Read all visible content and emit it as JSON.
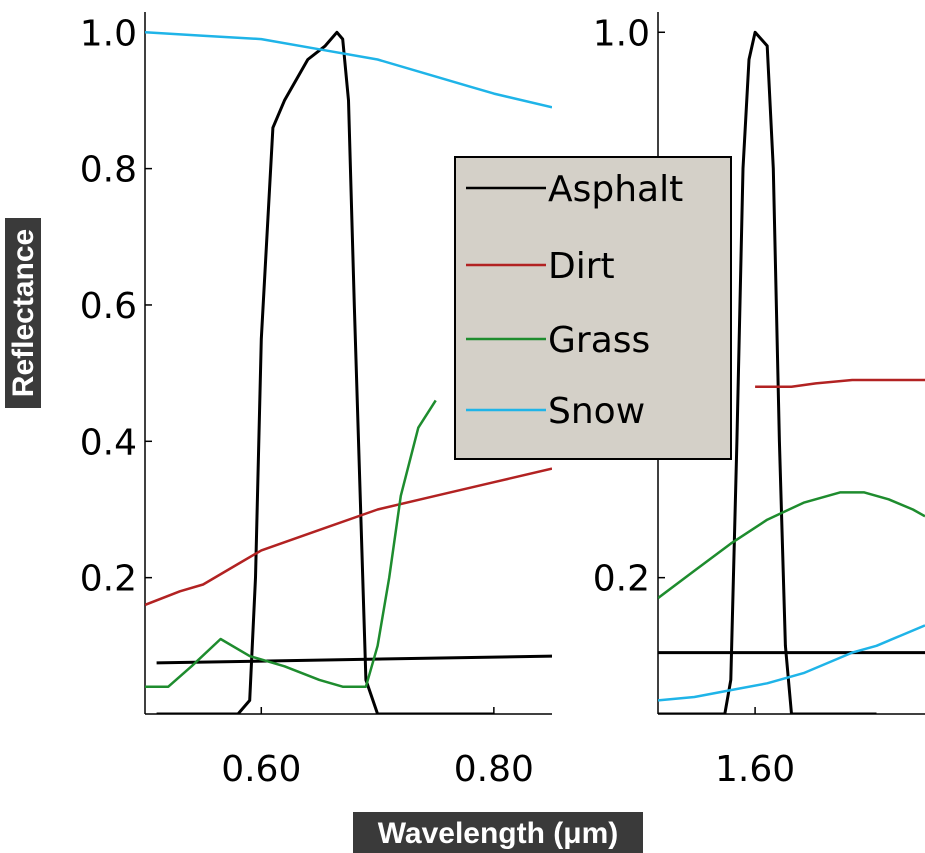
{
  "chart_data": {
    "type": "line",
    "xlabel": "Wavelength (μm)",
    "ylabel": "Reflectance",
    "legend": {
      "placement": "center-right",
      "entries": [
        {
          "name": "Asphalt",
          "color": "#000000"
        },
        {
          "name": "Dirt",
          "color": "#b22222"
        },
        {
          "name": "Grass",
          "color": "#1e8c2e"
        },
        {
          "name": "Snow",
          "color": "#1fb4e8"
        }
      ]
    },
    "panels": [
      {
        "xlim": [
          0.5,
          0.85
        ],
        "ylim": [
          0.0,
          1.04
        ],
        "xticks": [
          0.6,
          0.8
        ],
        "xtick_labels": [
          "0.60",
          "0.80"
        ],
        "yticks": [
          0.2,
          0.4,
          0.6,
          0.8,
          1.0
        ],
        "ytick_labels": [
          "0.2",
          "0.4",
          "0.6",
          "0.8",
          "1.0"
        ],
        "series": [
          {
            "name": "Asphalt",
            "x": [
              0.51,
              0.85
            ],
            "y": [
              0.075,
              0.085
            ]
          },
          {
            "name": "Asphalt",
            "x": [
              0.51,
              0.55,
              0.58,
              0.59,
              0.595,
              0.6,
              0.61,
              0.62,
              0.64,
              0.655,
              0.665,
              0.67,
              0.675,
              0.68,
              0.69,
              0.7,
              0.75,
              0.8
            ],
            "y": [
              0.0,
              0.0,
              0.0,
              0.02,
              0.2,
              0.55,
              0.86,
              0.9,
              0.96,
              0.98,
              1.0,
              0.99,
              0.9,
              0.6,
              0.05,
              0.0,
              0.0,
              0.0
            ]
          },
          {
            "name": "Dirt",
            "x": [
              0.5,
              0.53,
              0.55,
              0.58,
              0.6,
              0.65,
              0.7,
              0.75,
              0.8,
              0.85
            ],
            "y": [
              0.16,
              0.18,
              0.19,
              0.22,
              0.24,
              0.27,
              0.3,
              0.32,
              0.34,
              0.36
            ]
          },
          {
            "name": "Grass",
            "x": [
              0.5,
              0.52,
              0.54,
              0.565,
              0.59,
              0.62,
              0.65,
              0.67,
              0.69,
              0.7,
              0.71,
              0.72,
              0.735,
              0.75
            ],
            "y": [
              0.04,
              0.04,
              0.07,
              0.11,
              0.085,
              0.07,
              0.05,
              0.04,
              0.04,
              0.1,
              0.2,
              0.32,
              0.42,
              0.46
            ]
          },
          {
            "name": "Snow",
            "x": [
              0.5,
              0.55,
              0.6,
              0.65,
              0.7,
              0.75,
              0.78,
              0.8,
              0.85
            ],
            "y": [
              1.0,
              0.995,
              0.99,
              0.975,
              0.96,
              0.935,
              0.92,
              0.91,
              0.89
            ]
          }
        ]
      },
      {
        "xlim": [
          1.44,
          1.88
        ],
        "ylim": [
          0.0,
          1.04
        ],
        "xticks": [
          1.6
        ],
        "xtick_labels": [
          "1.60"
        ],
        "yticks": [
          0.2,
          1.0
        ],
        "ytick_labels": [
          "0.2",
          "1.0"
        ],
        "series": [
          {
            "name": "Asphalt",
            "x": [
              1.44,
              1.88
            ],
            "y": [
              0.09,
              0.09
            ]
          },
          {
            "name": "Asphalt",
            "x": [
              1.44,
              1.53,
              1.55,
              1.56,
              1.57,
              1.58,
              1.59,
              1.6,
              1.61,
              1.62,
              1.63,
              1.64,
              1.65,
              1.66,
              1.68,
              1.8
            ],
            "y": [
              0.0,
              0.0,
              0.0,
              0.05,
              0.4,
              0.8,
              0.96,
              1.0,
              0.99,
              0.98,
              0.8,
              0.4,
              0.1,
              0.0,
              0.0,
              0.0
            ]
          },
          {
            "name": "Dirt",
            "x": [
              1.6,
              1.66,
              1.7,
              1.76,
              1.82,
              1.88
            ],
            "y": [
              0.48,
              0.48,
              0.485,
              0.49,
              0.49,
              0.49
            ]
          },
          {
            "name": "Grass",
            "x": [
              1.44,
              1.5,
              1.56,
              1.62,
              1.68,
              1.74,
              1.78,
              1.82,
              1.86,
              1.88
            ],
            "y": [
              0.17,
              0.21,
              0.25,
              0.285,
              0.31,
              0.325,
              0.325,
              0.315,
              0.3,
              0.29
            ]
          },
          {
            "name": "Snow",
            "x": [
              1.44,
              1.5,
              1.56,
              1.62,
              1.68,
              1.72,
              1.76,
              1.8,
              1.84,
              1.88
            ],
            "y": [
              0.02,
              0.025,
              0.035,
              0.045,
              0.06,
              0.075,
              0.09,
              0.1,
              0.115,
              0.13
            ]
          }
        ]
      }
    ]
  }
}
